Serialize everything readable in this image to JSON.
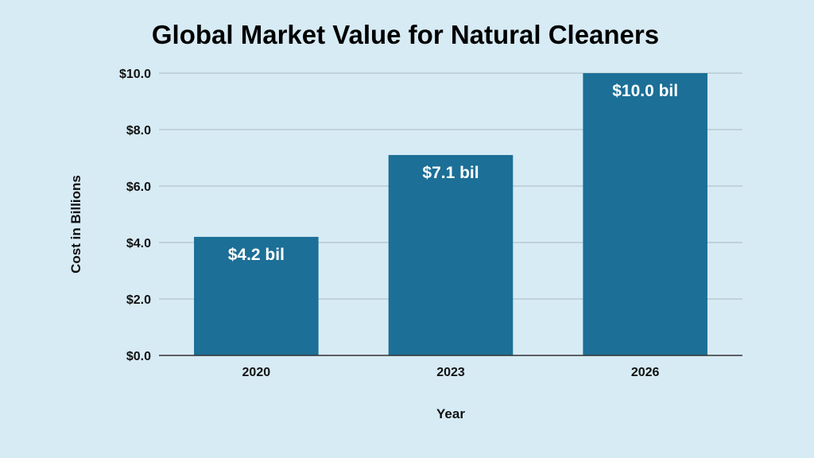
{
  "chart_data": {
    "type": "bar",
    "title": "Global Market Value for Natural Cleaners",
    "xlabel": "Year",
    "ylabel": "Cost in Billions",
    "categories": [
      "2020",
      "2023",
      "2026"
    ],
    "values": [
      4.2,
      7.1,
      10.0
    ],
    "data_labels": [
      "$4.2 bil",
      "$7.1 bil",
      "$10.0 bil"
    ],
    "y_ticks": [
      0,
      2,
      4,
      6,
      8,
      10
    ],
    "y_tick_labels": [
      "$0.0",
      "$2.0",
      "$4.0",
      "$6.0",
      "$8.0",
      "$10.0"
    ],
    "ylim": [
      0,
      10
    ],
    "grid": "horizontal",
    "legend": "none",
    "colors": {
      "bar": "#1c6f96",
      "background": "#d7ebf5",
      "grid": "#a9b8c0",
      "axis": "#333333",
      "data_label": "#ffffff"
    }
  }
}
